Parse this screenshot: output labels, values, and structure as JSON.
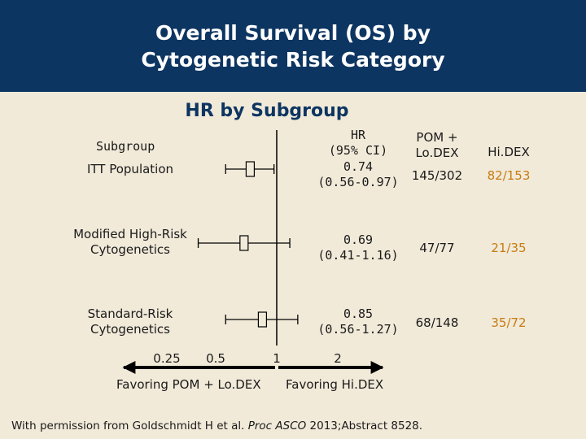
{
  "header": {
    "title_line1": "Overall Survival (OS) by",
    "title_line2": "Cytogenetic Risk Category"
  },
  "subtitle": "HR by Subgroup",
  "columns": {
    "subgroup": "Subgroup",
    "hr_line1": "HR",
    "hr_line2": "(95% CI)",
    "pom_line1": "POM +",
    "pom_line2": "Lo.DEX",
    "hidex": "Hi.DEX"
  },
  "rows": [
    {
      "label_line1": "ITT Population",
      "label_line2": "",
      "hr": "0.74",
      "ci": "(0.56-0.97)",
      "pom": "145/302",
      "hidex": "82/153"
    },
    {
      "label_line1": "Modified High-Risk",
      "label_line2": "Cytogenetics",
      "hr": "0.69",
      "ci": "(0.41-1.16)",
      "pom": "47/77",
      "hidex": "21/35"
    },
    {
      "label_line1": "Standard-Risk",
      "label_line2": "Cytogenetics",
      "hr": "0.85",
      "ci": "(0.56-1.27)",
      "pom": "68/148",
      "hidex": "35/72"
    }
  ],
  "axis": {
    "tick_labels": [
      "0.25",
      "0.5",
      "1",
      "2"
    ],
    "favor_left": "Favoring POM + Lo.DEX",
    "favor_right": "Favoring Hi.DEX"
  },
  "footnote": {
    "prefix": "With permission from Goldschmidt H et al. ",
    "journal": "Proc ASCO",
    "suffix": " 2013;Abstract 8528."
  },
  "colors": {
    "header_bg": "#0d3561",
    "background": "#f1ead9",
    "hidex_text": "#c87b12"
  },
  "chart_data": {
    "type": "forest",
    "title": "HR by Subgroup",
    "scale": "log2",
    "xlim": [
      0.25,
      2
    ],
    "reference_line": 1,
    "xticks": [
      0.25,
      0.5,
      1,
      2
    ],
    "series": [
      {
        "name": "ITT Population",
        "hr": 0.74,
        "ci_low": 0.56,
        "ci_high": 0.97
      },
      {
        "name": "Modified High-Risk Cytogenetics",
        "hr": 0.69,
        "ci_low": 0.41,
        "ci_high": 1.16
      },
      {
        "name": "Standard-Risk Cytogenetics",
        "hr": 0.85,
        "ci_low": 0.56,
        "ci_high": 1.27
      }
    ]
  }
}
